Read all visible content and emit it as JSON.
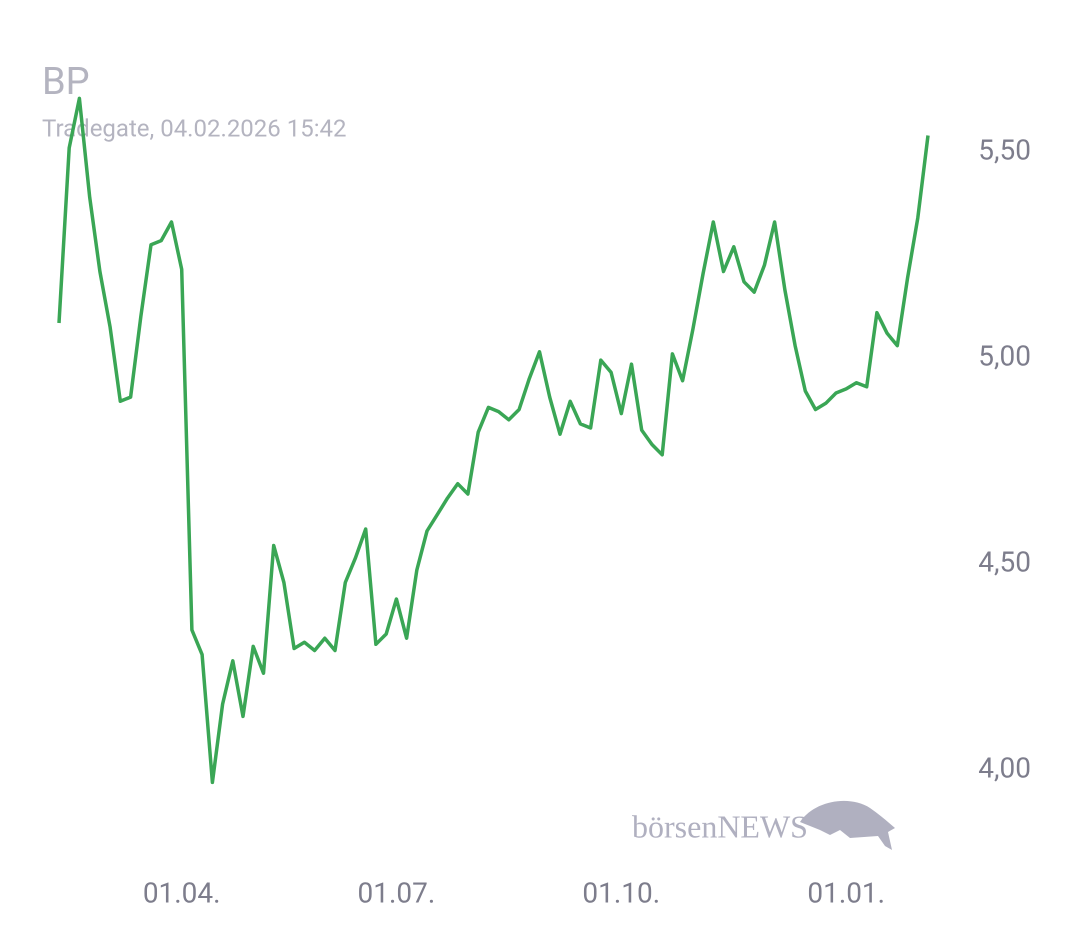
{
  "chart_data": {
    "type": "line",
    "title": "BP",
    "subtitle": "Tradegate, 04.02.2026 15:42",
    "watermark": "börsenNEWS",
    "color": "#3aa655",
    "categories": [
      null,
      null,
      null,
      null,
      null,
      null,
      null,
      null,
      null,
      null,
      null,
      null,
      "01.04.",
      null,
      null,
      null,
      null,
      null,
      null,
      null,
      null,
      null,
      null,
      null,
      null,
      null,
      null,
      null,
      null,
      null,
      null,
      null,
      null,
      "01.07.",
      null,
      null,
      null,
      null,
      null,
      null,
      null,
      null,
      null,
      null,
      null,
      null,
      null,
      null,
      null,
      null,
      null,
      null,
      null,
      null,
      null,
      "01.10.",
      null,
      null,
      null,
      null,
      null,
      null,
      null,
      null,
      null,
      null,
      null,
      null,
      null,
      null,
      null,
      null,
      null,
      null,
      null,
      null,
      null,
      "01.01.",
      null,
      null,
      null,
      null,
      null,
      null,
      null,
      null
    ],
    "values": [
      5.085,
      5.51,
      5.63,
      5.39,
      5.21,
      5.075,
      4.895,
      4.905,
      5.1,
      5.275,
      5.285,
      5.33,
      5.215,
      4.34,
      4.28,
      3.97,
      4.16,
      4.265,
      4.13,
      4.3,
      4.235,
      4.545,
      4.455,
      4.295,
      4.31,
      4.29,
      4.32,
      4.29,
      4.455,
      4.515,
      4.585,
      4.305,
      4.33,
      4.415,
      4.32,
      4.485,
      4.58,
      4.62,
      4.66,
      4.695,
      4.67,
      4.82,
      4.88,
      4.87,
      4.85,
      4.875,
      4.95,
      5.015,
      4.905,
      4.815,
      4.895,
      4.84,
      4.83,
      4.995,
      4.965,
      4.865,
      4.985,
      4.825,
      4.79,
      4.765,
      5.01,
      4.945,
      5.07,
      5.205,
      5.33,
      5.21,
      5.27,
      5.185,
      5.16,
      5.225,
      5.33,
      5.165,
      5.03,
      4.92,
      4.875,
      4.89,
      4.915,
      4.925,
      4.94,
      4.93,
      5.11,
      5.06,
      5.03,
      5.195,
      5.34,
      5.54
    ],
    "ylim": [
      3.8,
      5.7
    ],
    "yticks": [
      {
        "value": 4,
        "label": "4,00"
      },
      {
        "value": 4.5,
        "label": "4,50"
      },
      {
        "value": 5,
        "label": "5,00"
      },
      {
        "value": 5.5,
        "label": "5,50"
      }
    ],
    "grid": false
  }
}
